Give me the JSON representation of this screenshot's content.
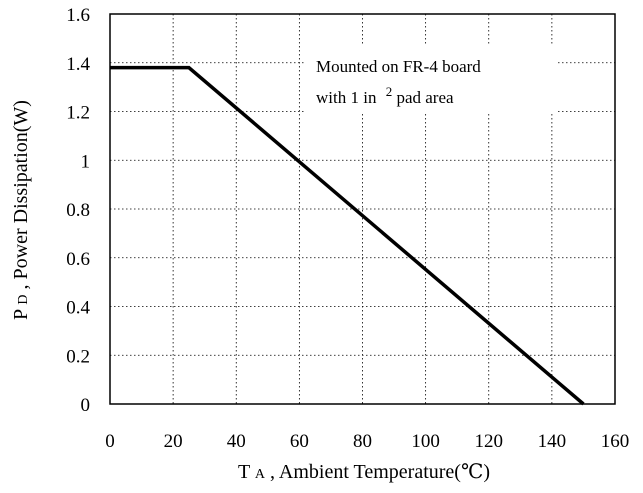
{
  "chart_data": {
    "type": "line",
    "title": "",
    "xlabel": {
      "main": "T",
      "sub": "A",
      "rest": ", Ambient Temperature(℃)"
    },
    "ylabel": {
      "main": "P",
      "sub": "D",
      "rest": ", Power Dissipation(W)"
    },
    "xlim": [
      0,
      160
    ],
    "ylim": [
      0,
      1.6
    ],
    "xticks": [
      0,
      20,
      40,
      60,
      80,
      100,
      120,
      140,
      160
    ],
    "yticks": [
      0,
      0.2,
      0.4,
      0.6,
      0.8,
      1,
      1.2,
      1.4,
      1.6
    ],
    "xtick_labels": [
      "0",
      "20",
      "40",
      "60",
      "80",
      "100",
      "120",
      "140",
      "160"
    ],
    "ytick_labels": [
      "0",
      "0.2",
      "0.4",
      "0.6",
      "0.8",
      "1",
      "1.2",
      "1.4",
      "1.6"
    ],
    "grid": true,
    "series": [
      {
        "x": [
          0,
          25,
          150
        ],
        "y": [
          1.38,
          1.38,
          0
        ]
      }
    ],
    "annotation": {
      "line1": "Mounted on FR-4 board",
      "line2_prefix": "with 1 in",
      "line2_sup": "2",
      "line2_suffix": " pad area"
    }
  }
}
